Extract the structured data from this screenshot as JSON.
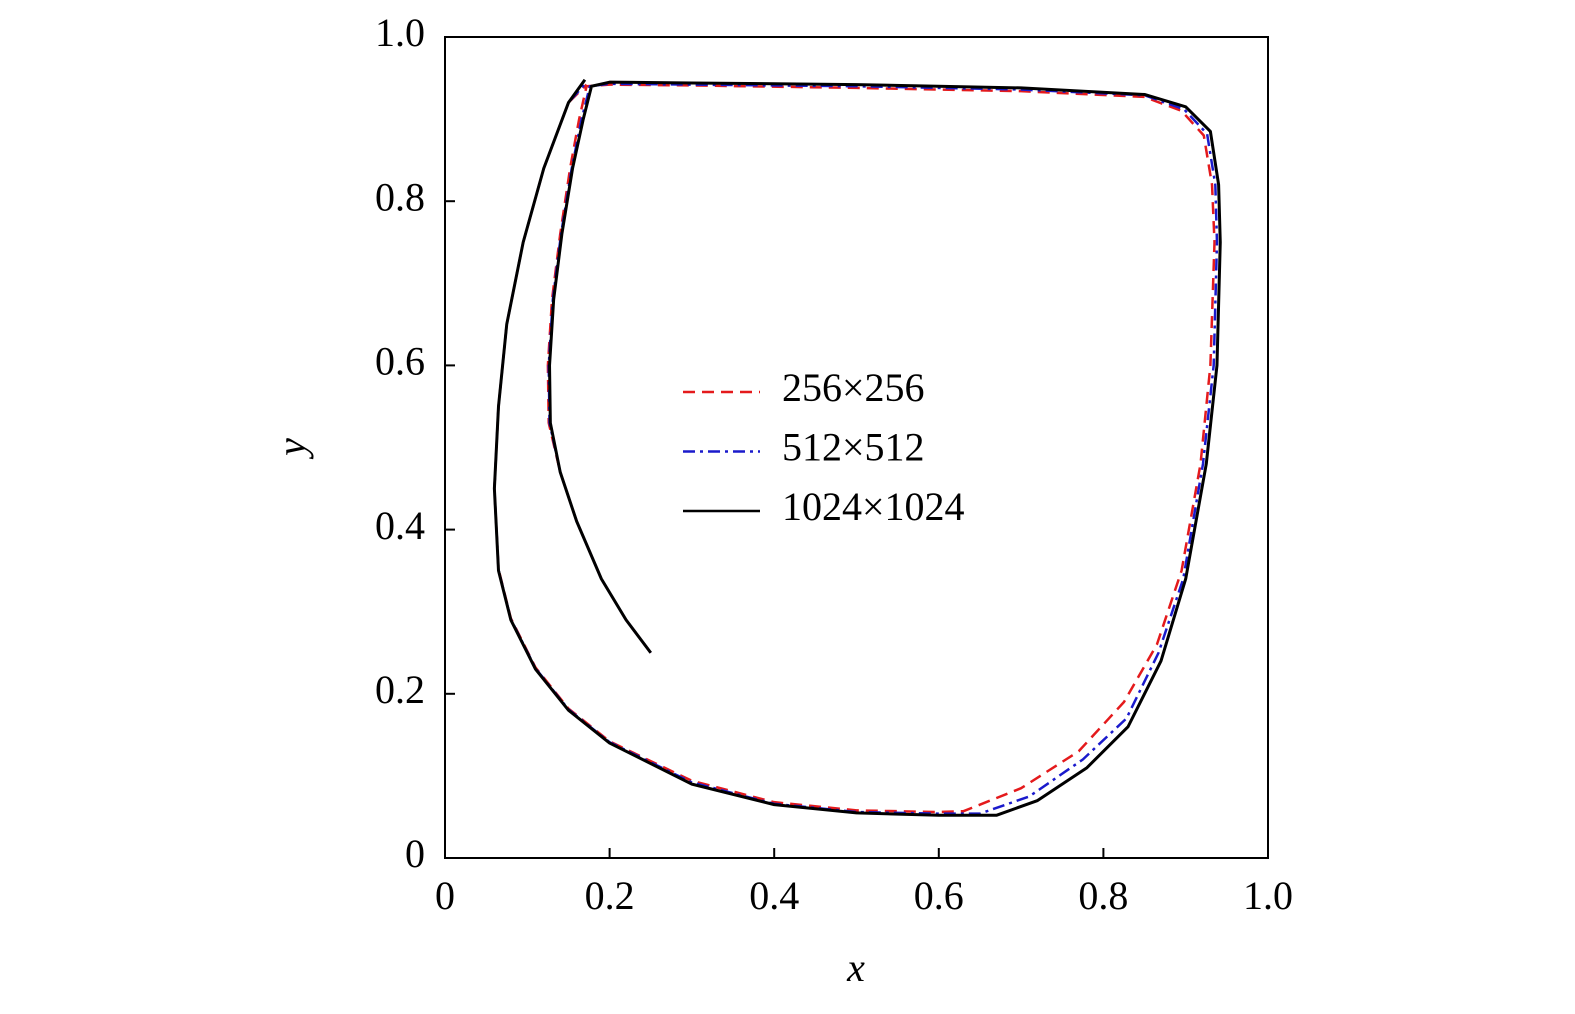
{
  "chart_data": {
    "type": "line",
    "xlabel": "x",
    "ylabel": "y",
    "xlim": [
      0,
      1
    ],
    "ylim": [
      0,
      1
    ],
    "xticks": [
      0,
      0.2,
      0.4,
      0.6,
      0.8,
      {
        "value": 1,
        "label": "1.0"
      }
    ],
    "yticks": [
      0,
      0.2,
      0.4,
      0.6,
      0.8,
      {
        "value": 1,
        "label": "1.0"
      }
    ],
    "series": [
      {
        "name": "256×256",
        "color": "#e41a1c",
        "dash": "12,7",
        "x": [
          0.25,
          0.22,
          0.19,
          0.16,
          0.14,
          0.126,
          0.125,
          0.13,
          0.14,
          0.152,
          0.163,
          0.172,
          0.2,
          0.3,
          0.5,
          0.7,
          0.85,
          0.895,
          0.922,
          0.932,
          0.935,
          0.93,
          0.918,
          0.895,
          0.865,
          0.825,
          0.77,
          0.7,
          0.63,
          0.6,
          0.5,
          0.4,
          0.3,
          0.2,
          0.15,
          0.11,
          0.08,
          0.065,
          0.06,
          0.065,
          0.075,
          0.095,
          0.12,
          0.15,
          0.172
        ],
        "values": [
          0.25,
          0.29,
          0.34,
          0.41,
          0.47,
          0.53,
          0.6,
          0.68,
          0.76,
          0.84,
          0.9,
          0.94,
          0.942,
          0.941,
          0.938,
          0.934,
          0.927,
          0.91,
          0.88,
          0.82,
          0.75,
          0.6,
          0.48,
          0.35,
          0.26,
          0.19,
          0.13,
          0.085,
          0.057,
          0.056,
          0.058,
          0.068,
          0.094,
          0.142,
          0.182,
          0.232,
          0.292,
          0.352,
          0.45,
          0.55,
          0.65,
          0.75,
          0.84,
          0.92,
          0.942
        ]
      },
      {
        "name": "512×512",
        "color": "#1a1acc",
        "dash": "12,5,3,5",
        "x": [
          0.25,
          0.22,
          0.19,
          0.16,
          0.14,
          0.127,
          0.126,
          0.131,
          0.141,
          0.154,
          0.166,
          0.176,
          0.2,
          0.3,
          0.5,
          0.7,
          0.85,
          0.898,
          0.926,
          0.936,
          0.938,
          0.934,
          0.921,
          0.897,
          0.867,
          0.828,
          0.775,
          0.71,
          0.65,
          0.6,
          0.5,
          0.4,
          0.3,
          0.2,
          0.15,
          0.11,
          0.08,
          0.065,
          0.06,
          0.065,
          0.075,
          0.095,
          0.12,
          0.15,
          0.172
        ],
        "values": [
          0.25,
          0.29,
          0.34,
          0.41,
          0.47,
          0.53,
          0.6,
          0.68,
          0.76,
          0.84,
          0.9,
          0.94,
          0.943,
          0.942,
          0.94,
          0.936,
          0.929,
          0.912,
          0.882,
          0.82,
          0.75,
          0.6,
          0.48,
          0.34,
          0.25,
          0.17,
          0.12,
          0.075,
          0.054,
          0.054,
          0.056,
          0.066,
          0.092,
          0.141,
          0.181,
          0.231,
          0.291,
          0.351,
          0.45,
          0.55,
          0.65,
          0.75,
          0.84,
          0.92,
          0.945
        ]
      },
      {
        "name": "1024×1024",
        "color": "#000000",
        "dash": "none",
        "x": [
          0.25,
          0.22,
          0.19,
          0.16,
          0.14,
          0.128,
          0.127,
          0.132,
          0.142,
          0.155,
          0.168,
          0.178,
          0.2,
          0.3,
          0.5,
          0.7,
          0.85,
          0.9,
          0.93,
          0.94,
          0.942,
          0.938,
          0.925,
          0.9,
          0.87,
          0.83,
          0.78,
          0.72,
          0.67,
          0.6,
          0.5,
          0.4,
          0.3,
          0.2,
          0.15,
          0.11,
          0.08,
          0.065,
          0.06,
          0.065,
          0.075,
          0.095,
          0.12,
          0.15,
          0.17
        ],
        "values": [
          0.25,
          0.29,
          0.34,
          0.41,
          0.47,
          0.53,
          0.6,
          0.68,
          0.76,
          0.84,
          0.9,
          0.94,
          0.945,
          0.944,
          0.942,
          0.938,
          0.93,
          0.915,
          0.885,
          0.82,
          0.75,
          0.6,
          0.48,
          0.34,
          0.24,
          0.16,
          0.11,
          0.07,
          0.052,
          0.052,
          0.055,
          0.065,
          0.09,
          0.14,
          0.18,
          0.23,
          0.29,
          0.35,
          0.45,
          0.55,
          0.65,
          0.75,
          0.84,
          0.92,
          0.948
        ]
      }
    ]
  }
}
